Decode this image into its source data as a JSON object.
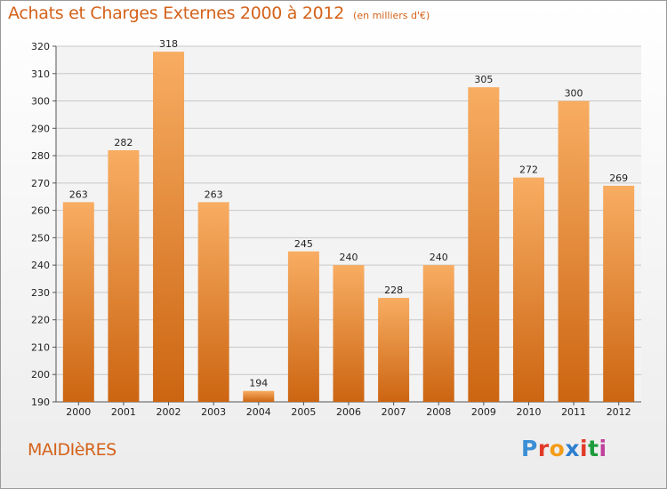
{
  "title": "Achats et Charges Externes 2000 à 2012",
  "subtitle": "(en milliers d'€)",
  "commune": "MAIDIèRES",
  "logo": {
    "letters": [
      "P",
      "r",
      "o",
      "x",
      "i",
      "t",
      "i"
    ],
    "colors": [
      "#3b8fd6",
      "#e23a28",
      "#f39c19",
      "#2f7fd0",
      "#e23a28",
      "#1c9c3c",
      "#c0409c"
    ]
  },
  "colors": {
    "bar": "#f08a2b",
    "bar_light": "#f8ad62",
    "bar_dark": "#cc6512",
    "title": "#d4621a"
  },
  "chart_data": {
    "type": "bar",
    "categories": [
      "2000",
      "2001",
      "2002",
      "2003",
      "2004",
      "2005",
      "2006",
      "2007",
      "2008",
      "2009",
      "2010",
      "2011",
      "2012"
    ],
    "values": [
      263,
      282,
      318,
      263,
      194,
      245,
      240,
      228,
      240,
      305,
      272,
      300,
      269
    ],
    "title": "Achats et Charges Externes 2000 à 2012",
    "xlabel": "",
    "ylabel": "",
    "ylim": [
      190,
      320
    ],
    "yticks": [
      190,
      200,
      210,
      220,
      230,
      240,
      250,
      260,
      270,
      280,
      290,
      300,
      310,
      320
    ],
    "grid": true
  }
}
